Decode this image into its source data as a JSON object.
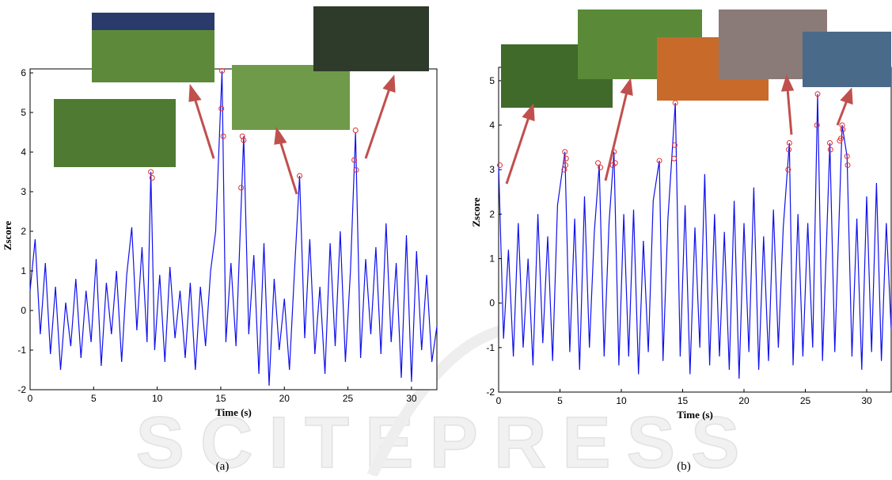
{
  "chart_data": [
    {
      "type": "line",
      "xlabel": "Time (s)",
      "ylabel": "Zscore",
      "caption": "(a)",
      "color": "#1010ee",
      "marker_color": "#e03030",
      "xlim": [
        0,
        32
      ],
      "ylim": [
        -2,
        6.1
      ],
      "xticks": [
        0,
        5,
        10,
        15,
        20,
        25,
        30
      ],
      "yticks": [
        -2,
        -1,
        0,
        1,
        2,
        3,
        4,
        5,
        6
      ],
      "x": [
        0,
        0.4,
        0.8,
        1.2,
        1.6,
        2.0,
        2.4,
        2.8,
        3.2,
        3.6,
        4.0,
        4.4,
        4.8,
        5.2,
        5.6,
        6.0,
        6.4,
        6.8,
        7.2,
        7.6,
        8.0,
        8.4,
        8.8,
        9.2,
        9.5,
        9.8,
        10.2,
        10.6,
        11.0,
        11.4,
        11.8,
        12.2,
        12.6,
        13.0,
        13.4,
        13.8,
        14.2,
        14.6,
        15.1,
        15.4,
        15.8,
        16.2,
        16.8,
        17.2,
        17.6,
        18.0,
        18.4,
        18.8,
        19.2,
        19.6,
        20.0,
        20.4,
        20.8,
        21.2,
        21.6,
        22.0,
        22.4,
        22.8,
        23.2,
        23.6,
        24.0,
        24.4,
        24.8,
        25.2,
        25.6,
        26.0,
        26.4,
        26.8,
        27.2,
        27.6,
        28.0,
        28.4,
        28.8,
        29.2,
        29.6,
        30.0,
        30.4,
        30.8,
        31.2,
        31.6,
        32.0
      ],
      "values": [
        0.5,
        1.8,
        -0.6,
        1.2,
        -1.1,
        0.6,
        -1.5,
        0.2,
        -0.9,
        0.8,
        -1.2,
        0.5,
        -0.8,
        1.3,
        -1.4,
        0.7,
        -0.6,
        1.0,
        -1.3,
        0.9,
        2.1,
        -0.5,
        1.6,
        -0.8,
        3.5,
        -1.0,
        0.9,
        -1.3,
        1.1,
        -0.7,
        0.5,
        -1.2,
        0.7,
        -1.5,
        0.6,
        -0.9,
        1.0,
        2.0,
        6.05,
        -0.8,
        1.2,
        -0.9,
        4.4,
        -0.6,
        1.4,
        -1.6,
        1.7,
        -1.9,
        0.8,
        -1.0,
        0.3,
        -1.5,
        1.0,
        3.4,
        -0.7,
        1.8,
        -1.1,
        0.6,
        -1.6,
        1.7,
        -0.9,
        2.0,
        -1.3,
        1.0,
        4.5,
        -1.2,
        1.3,
        -0.6,
        1.6,
        -1.1,
        2.2,
        -0.8,
        1.2,
        -1.7,
        1.9,
        -1.8,
        1.5,
        -1.0,
        0.9,
        -1.3,
        -0.4
      ],
      "markers": {
        "x": [
          9.5,
          9.6,
          15.1,
          15.05,
          15.2,
          16.7,
          16.8,
          16.6,
          21.2,
          25.6,
          25.5,
          25.65
        ],
        "values": [
          3.5,
          3.35,
          6.05,
          5.1,
          4.4,
          4.4,
          4.3,
          3.1,
          3.4,
          4.55,
          3.8,
          3.55
        ]
      }
    },
    {
      "type": "line",
      "xlabel": "Time (s)",
      "ylabel": "Zscore",
      "caption": "(b)",
      "color": "#1010ee",
      "marker_color": "#e03030",
      "xlim": [
        0,
        32
      ],
      "ylim": [
        -2,
        5.3
      ],
      "xticks": [
        0,
        5,
        10,
        15,
        20,
        25,
        30
      ],
      "yticks": [
        -2,
        -1,
        0,
        1,
        2,
        3,
        4,
        5
      ],
      "x": [
        0,
        0.4,
        0.8,
        1.2,
        1.6,
        2.0,
        2.4,
        2.8,
        3.2,
        3.6,
        4.0,
        4.4,
        4.8,
        5.4,
        5.8,
        6.2,
        6.6,
        7.0,
        7.4,
        7.8,
        8.2,
        8.6,
        9.0,
        9.4,
        9.8,
        10.2,
        10.6,
        11.0,
        11.4,
        11.8,
        12.2,
        12.6,
        13.1,
        13.4,
        13.8,
        14.4,
        14.8,
        15.2,
        15.6,
        16.0,
        16.4,
        16.8,
        17.2,
        17.6,
        18.0,
        18.4,
        18.8,
        19.2,
        19.6,
        20.0,
        20.4,
        20.8,
        21.2,
        21.6,
        22.0,
        22.4,
        22.8,
        23.2,
        23.7,
        24.0,
        24.4,
        24.8,
        25.2,
        25.6,
        26.0,
        26.4,
        27.0,
        27.4,
        28.0,
        28.4,
        28.8,
        29.2,
        29.6,
        30.0,
        30.4,
        30.8,
        31.2,
        31.6,
        32.0
      ],
      "values": [
        3.1,
        -0.8,
        1.2,
        -1.2,
        1.8,
        -1.0,
        1.0,
        -1.4,
        2.0,
        -0.9,
        1.5,
        -1.3,
        2.2,
        3.4,
        -1.1,
        1.9,
        -1.5,
        2.4,
        -1.0,
        1.6,
        3.1,
        -1.2,
        1.8,
        3.4,
        -1.4,
        2.0,
        -1.2,
        2.1,
        -1.6,
        1.4,
        -1.1,
        2.3,
        3.2,
        -1.3,
        1.9,
        4.5,
        -1.2,
        2.2,
        -1.6,
        1.7,
        -1.0,
        2.9,
        -1.4,
        2.0,
        -1.2,
        1.6,
        -1.5,
        2.3,
        -1.7,
        1.8,
        -1.1,
        2.6,
        -1.5,
        1.5,
        -1.3,
        2.1,
        -1.0,
        1.7,
        3.6,
        -1.4,
        2.0,
        -1.2,
        1.8,
        -1.0,
        4.7,
        -1.3,
        3.6,
        -1.1,
        4.0,
        3.3,
        -1.2,
        1.9,
        -1.5,
        2.4,
        -1.1,
        2.7,
        -1.3,
        1.8,
        -0.6
      ],
      "markers": {
        "x": [
          0.1,
          5.4,
          5.35,
          5.5,
          5.45,
          8.1,
          8.3,
          9.3,
          9.4,
          9.5,
          13.1,
          14.4,
          14.35,
          14.3,
          23.7,
          23.65,
          23.6,
          26.0,
          25.95,
          27.0,
          27.05,
          27.9,
          28.0,
          28.05,
          27.8,
          28.4,
          28.45
        ],
        "values": [
          3.1,
          3.4,
          3.0,
          3.25,
          3.1,
          3.15,
          3.05,
          3.1,
          3.4,
          3.15,
          3.2,
          4.5,
          3.55,
          3.25,
          3.6,
          3.45,
          3.0,
          4.7,
          4.0,
          3.6,
          3.45,
          3.7,
          4.0,
          3.9,
          3.65,
          3.3,
          3.1
        ]
      }
    }
  ],
  "watermark": "SCITEPRESS"
}
